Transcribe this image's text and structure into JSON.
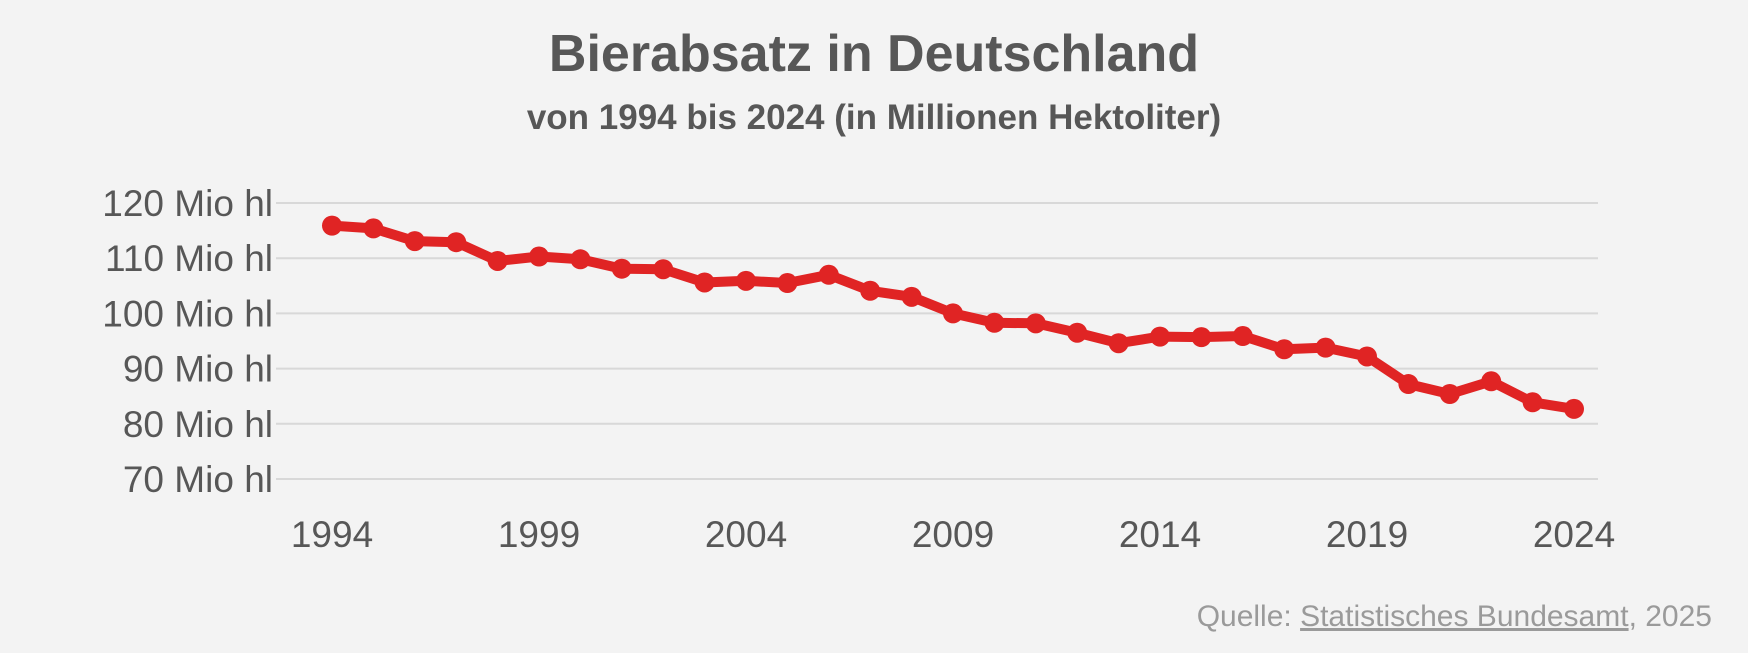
{
  "chart_data": {
    "type": "line",
    "title": "Bierabsatz in Deutschland",
    "subtitle": "von 1994 bis 2024 (in Millionen Hektoliter)",
    "xlabel": "",
    "ylabel": "",
    "x": [
      1994,
      1995,
      1996,
      1997,
      1998,
      1999,
      2000,
      2001,
      2002,
      2003,
      2004,
      2005,
      2006,
      2007,
      2008,
      2009,
      2010,
      2011,
      2012,
      2013,
      2014,
      2015,
      2016,
      2017,
      2018,
      2019,
      2020,
      2021,
      2022,
      2023,
      2024
    ],
    "values": [
      115.9,
      115.4,
      113.1,
      112.9,
      109.5,
      110.3,
      109.8,
      108.1,
      108.0,
      105.6,
      105.9,
      105.5,
      107.0,
      104.1,
      103.0,
      100.0,
      98.3,
      98.2,
      96.5,
      94.6,
      95.8,
      95.7,
      95.9,
      93.5,
      93.8,
      92.2,
      87.2,
      85.4,
      87.7,
      83.9,
      82.7
    ],
    "y_ticks": [
      {
        "value": 120,
        "label": "120 Mio hl"
      },
      {
        "value": 110,
        "label": "110 Mio hl"
      },
      {
        "value": 100,
        "label": "100 Mio hl"
      },
      {
        "value": 90,
        "label": "90 Mio hl"
      },
      {
        "value": 80,
        "label": "80 Mio hl"
      },
      {
        "value": 70,
        "label": "70 Mio hl"
      }
    ],
    "x_ticks": [
      {
        "value": 1994,
        "label": "1994"
      },
      {
        "value": 1999,
        "label": "1999"
      },
      {
        "value": 2004,
        "label": "2004"
      },
      {
        "value": 2009,
        "label": "2009"
      },
      {
        "value": 2014,
        "label": "2014"
      },
      {
        "value": 2019,
        "label": "2019"
      },
      {
        "value": 2024,
        "label": "2024"
      }
    ],
    "ylim": [
      70,
      120
    ],
    "xlim": [
      1994,
      2024
    ],
    "grid": true,
    "legend": "none",
    "line_color": "#e02424"
  },
  "source": {
    "prefix": "Quelle: ",
    "link_text": "Statistisches Bundesamt",
    "suffix": ", 2025"
  }
}
